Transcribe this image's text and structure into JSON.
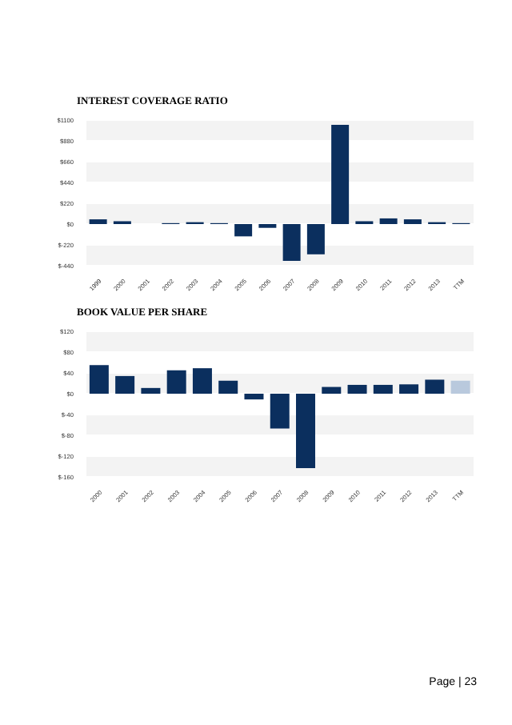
{
  "chart_data": [
    {
      "type": "bar",
      "title": "INTEREST COVERAGE RATIO",
      "categories": [
        "1999",
        "2000",
        "2001",
        "2002",
        "2003",
        "2004",
        "2005",
        "2006",
        "2007",
        "2008",
        "2009",
        "2010",
        "2011",
        "2012",
        "2013",
        "TTM"
      ],
      "values": [
        50,
        30,
        0,
        10,
        20,
        10,
        -130,
        -40,
        -390,
        -320,
        1050,
        30,
        60,
        50,
        20,
        10
      ],
      "color": "#0b2f5e",
      "ylim": [
        -440,
        1100
      ],
      "yticks": [
        {
          "value": -440,
          "label": "$-440"
        },
        {
          "value": -220,
          "label": "$-220"
        },
        {
          "value": 0,
          "label": "$0"
        },
        {
          "value": 220,
          "label": "$220"
        },
        {
          "value": 440,
          "label": "$440"
        },
        {
          "value": 660,
          "label": "$660"
        },
        {
          "value": 880,
          "label": "$880"
        },
        {
          "value": 1100,
          "label": "$1100"
        }
      ],
      "grid": "y"
    },
    {
      "type": "bar",
      "title": "BOOK VALUE PER SHARE",
      "categories": [
        "2000",
        "2001",
        "2002",
        "2003",
        "2004",
        "2005",
        "2006",
        "2007",
        "2008",
        "2009",
        "2010",
        "2011",
        "2012",
        "2013",
        "TTM"
      ],
      "values": [
        55,
        34,
        11,
        45,
        49,
        25,
        -11,
        -67,
        -143,
        13,
        17,
        17,
        18,
        27,
        25
      ],
      "colors": [
        "#0b2f5e",
        "#0b2f5e",
        "#0b2f5e",
        "#0b2f5e",
        "#0b2f5e",
        "#0b2f5e",
        "#0b2f5e",
        "#0b2f5e",
        "#0b2f5e",
        "#0b2f5e",
        "#0b2f5e",
        "#0b2f5e",
        "#0b2f5e",
        "#0b2f5e",
        "#b9c9dd"
      ],
      "ylim": [
        -160,
        120
      ],
      "yticks": [
        {
          "value": -160,
          "label": "$-160"
        },
        {
          "value": -120,
          "label": "$-120"
        },
        {
          "value": -80,
          "label": "$-80"
        },
        {
          "value": -40,
          "label": "$-40"
        },
        {
          "value": 0,
          "label": "$0"
        },
        {
          "value": 40,
          "label": "$40"
        },
        {
          "value": 80,
          "label": "$80"
        },
        {
          "value": 120,
          "label": "$120"
        }
      ],
      "grid": "y",
      "annotations": [
        "Page | 23"
      ]
    }
  ]
}
